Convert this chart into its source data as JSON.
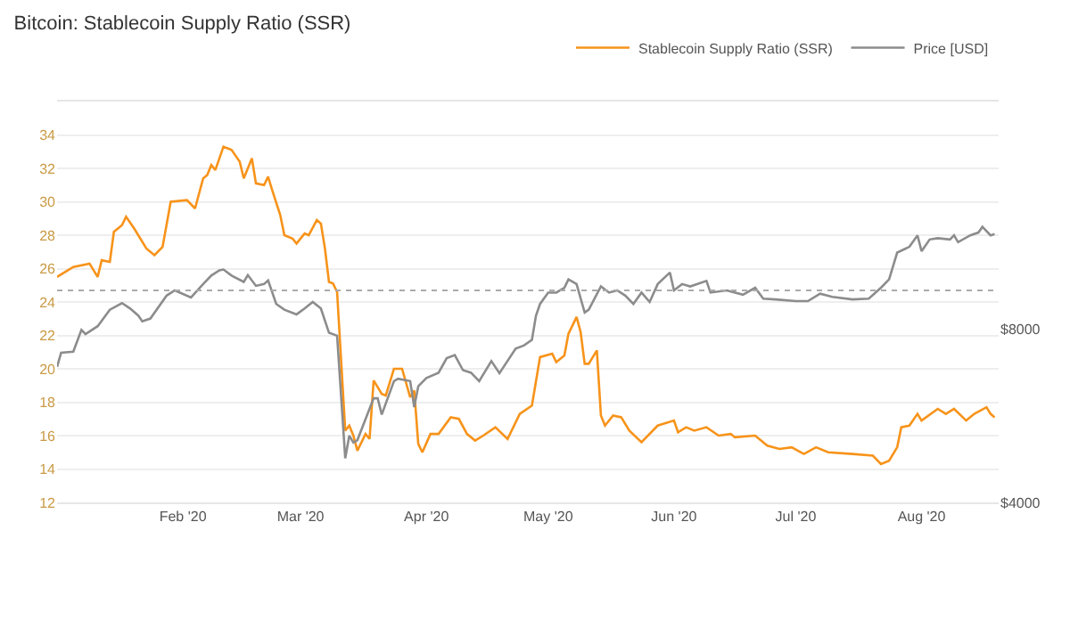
{
  "chart_data": {
    "type": "line",
    "title": "Bitcoin: Stablecoin Supply Ratio (SSR)",
    "xlim": [
      "2020-01-01",
      "2020-08-20"
    ],
    "xticks": [
      {
        "value": "2020-02-01",
        "label": "Feb '20"
      },
      {
        "value": "2020-03-01",
        "label": "Mar '20"
      },
      {
        "value": "2020-04-01",
        "label": "Apr '20"
      },
      {
        "value": "2020-05-01",
        "label": "May '20"
      },
      {
        "value": "2020-06-01",
        "label": "Jun '20"
      },
      {
        "value": "2020-07-01",
        "label": "Jul '20"
      },
      {
        "value": "2020-08-01",
        "label": "Aug '20"
      }
    ],
    "ylim": [
      12,
      36
    ],
    "yticks": [
      12,
      14,
      16,
      18,
      20,
      22,
      24,
      26,
      28,
      30,
      32,
      34
    ],
    "y2lim": [
      4000,
      19800
    ],
    "y2ticks": [
      {
        "value": 4000,
        "label": "$4000"
      },
      {
        "value": 8000,
        "label": "$8000"
      }
    ],
    "log": "y2",
    "grid": "y",
    "legend": "top right",
    "marker": "none",
    "line_style": "solid",
    "ref_lines": [
      {
        "axis": "y",
        "value": 24.7,
        "color": "#aaaaaa",
        "line_style": "dotted"
      }
    ],
    "series": [
      {
        "name": "Stablecoin Supply Ratio (SSR)",
        "color": "#f7931a",
        "x": [
          "2020-01-01",
          "2020-01-05",
          "2020-01-09",
          "2020-01-11",
          "2020-01-12",
          "2020-01-14",
          "2020-01-15",
          "2020-01-17",
          "2020-01-18",
          "2020-01-20",
          "2020-01-23",
          "2020-01-25",
          "2020-01-27",
          "2020-01-29",
          "2020-02-02",
          "2020-02-04",
          "2020-02-06",
          "2020-02-07",
          "2020-02-08",
          "2020-02-09",
          "2020-02-11",
          "2020-02-13",
          "2020-02-15",
          "2020-02-16",
          "2020-02-18",
          "2020-02-19",
          "2020-02-21",
          "2020-02-22",
          "2020-02-23",
          "2020-02-25",
          "2020-02-26",
          "2020-02-28",
          "2020-02-29",
          "2020-03-02",
          "2020-03-03",
          "2020-03-05",
          "2020-03-06",
          "2020-03-07",
          "2020-03-08",
          "2020-03-09",
          "2020-03-10",
          "2020-03-12",
          "2020-03-13",
          "2020-03-14",
          "2020-03-15",
          "2020-03-17",
          "2020-03-18",
          "2020-03-19",
          "2020-03-21",
          "2020-03-22",
          "2020-03-24",
          "2020-03-26",
          "2020-03-28",
          "2020-03-29",
          "2020-03-30",
          "2020-03-31",
          "2020-04-02",
          "2020-04-04",
          "2020-04-07",
          "2020-04-09",
          "2020-04-11",
          "2020-04-13",
          "2020-04-15",
          "2020-04-18",
          "2020-04-21",
          "2020-04-24",
          "2020-04-27",
          "2020-04-29",
          "2020-05-02",
          "2020-05-03",
          "2020-05-05",
          "2020-05-06",
          "2020-05-08",
          "2020-05-09",
          "2020-05-10",
          "2020-05-11",
          "2020-05-13",
          "2020-05-14",
          "2020-05-15",
          "2020-05-17",
          "2020-05-19",
          "2020-05-21",
          "2020-05-24",
          "2020-05-28",
          "2020-06-01",
          "2020-06-02",
          "2020-06-04",
          "2020-06-06",
          "2020-06-09",
          "2020-06-12",
          "2020-06-15",
          "2020-06-16",
          "2020-06-21",
          "2020-06-24",
          "2020-06-27",
          "2020-06-30",
          "2020-07-03",
          "2020-07-06",
          "2020-07-09",
          "2020-07-15",
          "2020-07-20",
          "2020-07-22",
          "2020-07-24",
          "2020-07-26",
          "2020-07-27",
          "2020-07-29",
          "2020-07-31",
          "2020-08-01",
          "2020-08-05",
          "2020-08-07",
          "2020-08-09",
          "2020-08-12",
          "2020-08-14",
          "2020-08-17",
          "2020-08-18",
          "2020-08-19"
        ],
        "values": [
          25.5,
          26.1,
          26.3,
          25.5,
          26.5,
          26.4,
          28.2,
          28.6,
          29.1,
          28.4,
          27.2,
          26.8,
          27.3,
          30.0,
          30.1,
          29.6,
          31.4,
          31.6,
          32.2,
          31.9,
          33.3,
          33.1,
          32.4,
          31.4,
          32.6,
          31.1,
          31.0,
          31.5,
          30.7,
          29.2,
          28.0,
          27.8,
          27.5,
          28.1,
          28.0,
          28.9,
          28.7,
          27.2,
          25.2,
          25.1,
          24.6,
          16.3,
          16.6,
          16.0,
          15.1,
          16.1,
          15.8,
          19.3,
          18.5,
          18.4,
          20.0,
          20.0,
          18.3,
          18.7,
          15.5,
          15.0,
          16.1,
          16.1,
          17.1,
          17.0,
          16.1,
          15.7,
          16.0,
          16.5,
          15.8,
          17.3,
          17.8,
          20.7,
          20.9,
          20.4,
          20.8,
          22.1,
          23.1,
          22.2,
          20.3,
          20.3,
          21.1,
          17.2,
          16.6,
          17.2,
          17.1,
          16.3,
          15.6,
          16.6,
          16.9,
          16.2,
          16.5,
          16.3,
          16.5,
          16.0,
          16.1,
          15.9,
          16.0,
          15.4,
          15.2,
          15.3,
          14.9,
          15.3,
          15.0,
          14.9,
          14.8,
          14.3,
          14.5,
          15.3,
          16.5,
          16.6,
          17.3,
          16.9,
          17.6,
          17.3,
          17.6,
          16.9,
          17.3,
          17.7,
          17.3,
          17.1
        ]
      },
      {
        "name": "Price [USD]",
        "color": "#8c8c8c",
        "axis": "y2",
        "x": [
          "2020-01-01",
          "2020-01-02",
          "2020-01-05",
          "2020-01-07",
          "2020-01-08",
          "2020-01-11",
          "2020-01-14",
          "2020-01-17",
          "2020-01-19",
          "2020-01-21",
          "2020-01-22",
          "2020-01-24",
          "2020-01-28",
          "2020-01-30",
          "2020-02-03",
          "2020-02-06",
          "2020-02-08",
          "2020-02-10",
          "2020-02-11",
          "2020-02-13",
          "2020-02-16",
          "2020-02-17",
          "2020-02-19",
          "2020-02-21",
          "2020-02-22",
          "2020-02-24",
          "2020-02-26",
          "2020-02-29",
          "2020-03-02",
          "2020-03-04",
          "2020-03-06",
          "2020-03-08",
          "2020-03-10",
          "2020-03-12",
          "2020-03-13",
          "2020-03-14",
          "2020-03-15",
          "2020-03-19",
          "2020-03-20",
          "2020-03-21",
          "2020-03-24",
          "2020-03-25",
          "2020-03-28",
          "2020-03-29",
          "2020-03-30",
          "2020-04-01",
          "2020-04-04",
          "2020-04-06",
          "2020-04-08",
          "2020-04-10",
          "2020-04-12",
          "2020-04-14",
          "2020-04-17",
          "2020-04-19",
          "2020-04-23",
          "2020-04-25",
          "2020-04-27",
          "2020-04-28",
          "2020-04-29",
          "2020-05-01",
          "2020-05-03",
          "2020-05-05",
          "2020-05-06",
          "2020-05-08",
          "2020-05-10",
          "2020-05-11",
          "2020-05-14",
          "2020-05-16",
          "2020-05-18",
          "2020-05-20",
          "2020-05-22",
          "2020-05-24",
          "2020-05-26",
          "2020-05-28",
          "2020-05-31",
          "2020-06-01",
          "2020-06-03",
          "2020-06-05",
          "2020-06-09",
          "2020-06-10",
          "2020-06-14",
          "2020-06-18",
          "2020-06-21",
          "2020-06-23",
          "2020-06-26",
          "2020-07-01",
          "2020-07-04",
          "2020-07-07",
          "2020-07-10",
          "2020-07-15",
          "2020-07-19",
          "2020-07-22",
          "2020-07-24",
          "2020-07-26",
          "2020-07-29",
          "2020-07-31",
          "2020-08-01",
          "2020-08-03",
          "2020-08-05",
          "2020-08-08",
          "2020-08-09",
          "2020-08-10",
          "2020-08-13",
          "2020-08-15",
          "2020-08-16",
          "2020-08-18",
          "2020-08-19"
        ],
        "values": [
          6870,
          7270,
          7300,
          7960,
          7830,
          8080,
          8630,
          8860,
          8670,
          8430,
          8240,
          8330,
          9130,
          9320,
          9060,
          9560,
          9890,
          10100,
          10130,
          9890,
          9640,
          9910,
          9490,
          9560,
          9700,
          8830,
          8630,
          8470,
          8670,
          8900,
          8670,
          7870,
          7780,
          4770,
          5220,
          5080,
          5130,
          6060,
          6060,
          5680,
          6490,
          6550,
          6490,
          5850,
          6360,
          6570,
          6710,
          7110,
          7200,
          6780,
          6710,
          6490,
          7030,
          6700,
          7390,
          7480,
          7650,
          8430,
          8830,
          9240,
          9240,
          9420,
          9740,
          9560,
          8530,
          8630,
          9470,
          9240,
          9320,
          9130,
          8830,
          9240,
          8900,
          9560,
          10010,
          9320,
          9560,
          9470,
          9680,
          9240,
          9320,
          9160,
          9420,
          9020,
          8990,
          8930,
          8930,
          9200,
          9080,
          8990,
          9020,
          9420,
          9740,
          10840,
          11090,
          11610,
          10900,
          11420,
          11480,
          11420,
          11610,
          11300,
          11610,
          11740,
          12010,
          11610,
          11670
        ]
      }
    ]
  }
}
